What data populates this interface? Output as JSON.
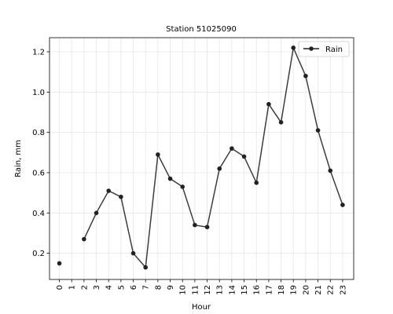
{
  "chart_data": {
    "type": "line",
    "title": "Station 51025090",
    "xlabel": "Hour",
    "ylabel": "Rain, mm",
    "x": [
      0,
      1,
      2,
      3,
      4,
      5,
      6,
      7,
      8,
      9,
      10,
      11,
      12,
      13,
      14,
      15,
      16,
      17,
      18,
      19,
      20,
      21,
      22,
      23
    ],
    "xticks": [
      "0",
      "1",
      "2",
      "3",
      "4",
      "5",
      "6",
      "7",
      "8",
      "9",
      "10",
      "11",
      "12",
      "13",
      "14",
      "15",
      "16",
      "17",
      "18",
      "19",
      "20",
      "21",
      "22",
      "23"
    ],
    "yticks": [
      "0.2",
      "0.4",
      "0.6",
      "0.8",
      "1.0",
      "1.2"
    ],
    "xlim": [
      -0.8,
      23.9
    ],
    "ylim": [
      0.07,
      1.27
    ],
    "grid": true,
    "legend_position": "top-right",
    "series": [
      {
        "name": "Rain",
        "color": "#222222",
        "values": [
          0.15,
          null,
          0.27,
          0.4,
          0.51,
          0.48,
          0.2,
          0.13,
          0.69,
          0.57,
          0.53,
          0.34,
          0.33,
          0.62,
          0.72,
          0.68,
          0.55,
          0.94,
          0.85,
          1.22,
          1.08,
          0.81,
          0.61,
          0.44
        ]
      }
    ]
  }
}
